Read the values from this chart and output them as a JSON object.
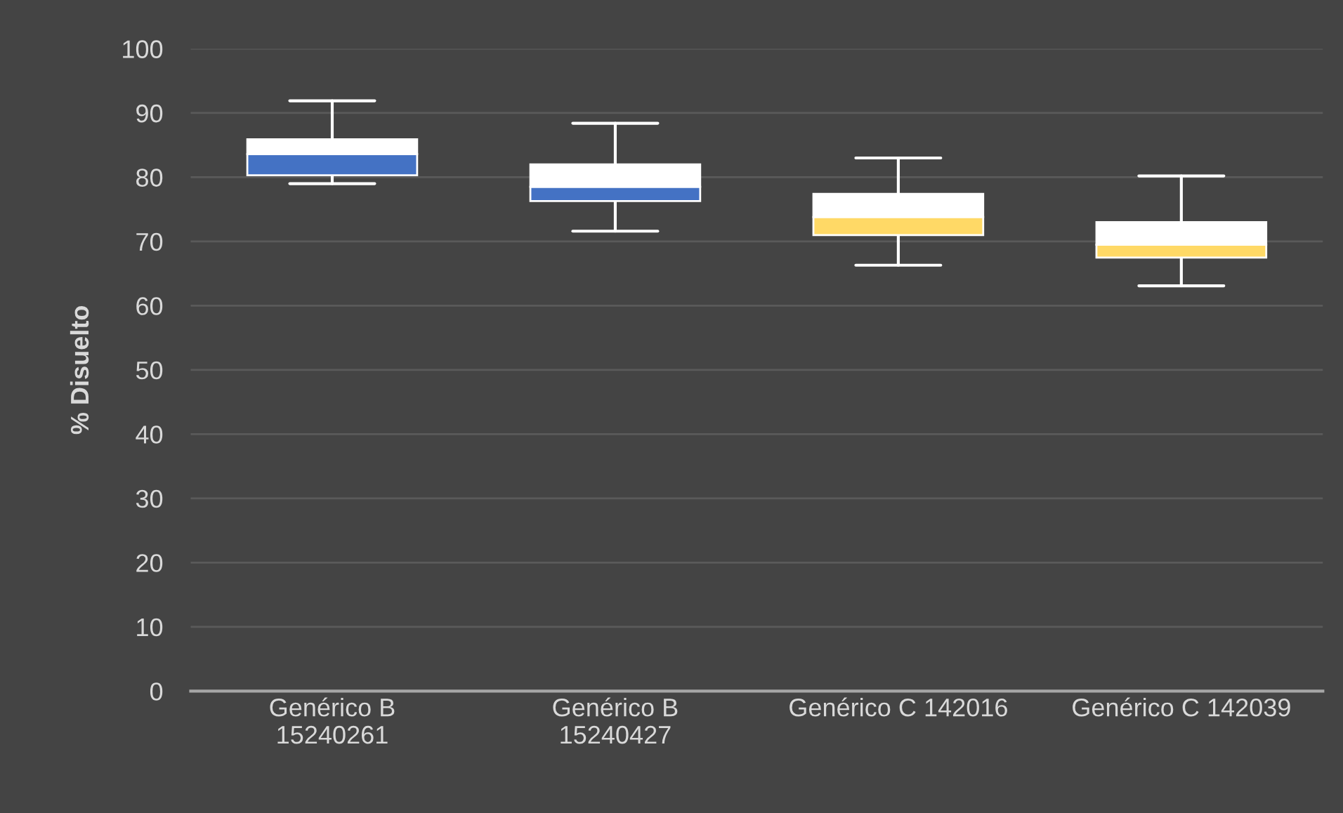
{
  "chart_data": {
    "type": "box",
    "ylabel": "% Disuelto",
    "categories": [
      "Genérico B\n15240261",
      "Genérico B\n15240427",
      "Genérico C 142016",
      "Genérico C 142039"
    ],
    "colors": [
      "#4472c4",
      "#4472c4",
      "#ffd966",
      "#ffd966"
    ],
    "boxes": [
      {
        "low": 79.0,
        "q1": 80.3,
        "median": 83.6,
        "q3": 85.9,
        "high": 91.9
      },
      {
        "low": 71.6,
        "q1": 76.3,
        "median": 78.5,
        "q3": 82.0,
        "high": 88.4
      },
      {
        "low": 66.3,
        "q1": 71.0,
        "median": 73.8,
        "q3": 77.4,
        "high": 83.0
      },
      {
        "low": 63.1,
        "q1": 67.5,
        "median": 69.5,
        "q3": 73.0,
        "high": 80.2
      }
    ],
    "ylim": [
      0,
      100
    ],
    "yticks": [
      0,
      10,
      20,
      30,
      40,
      50,
      60,
      70,
      80,
      90,
      100
    ],
    "grid": "y",
    "legend": false
  }
}
